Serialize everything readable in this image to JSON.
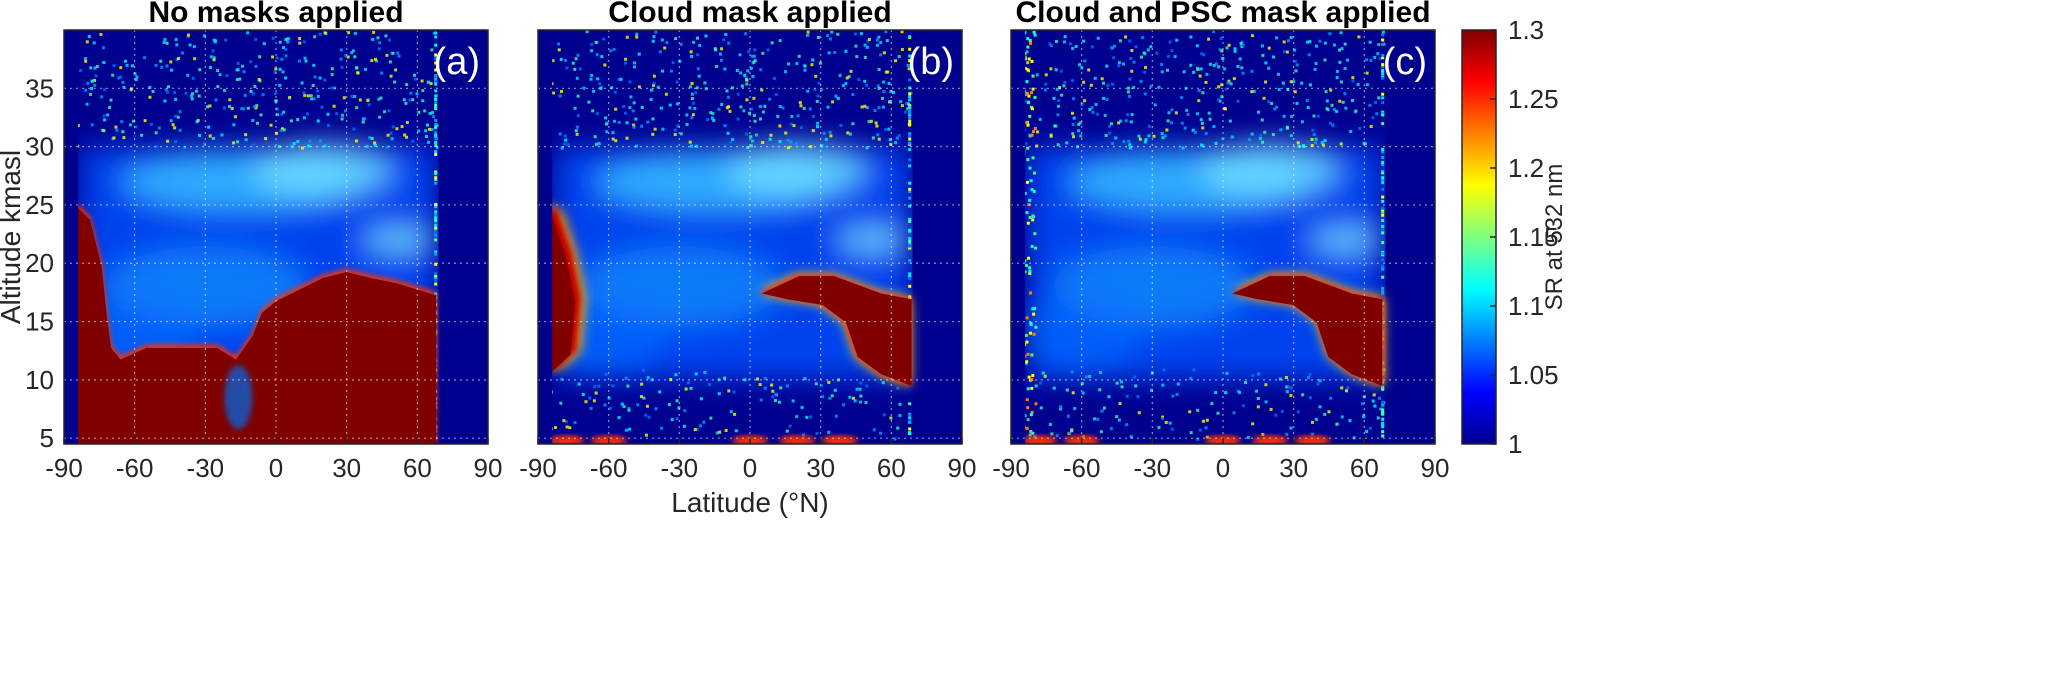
{
  "chart_data": [
    {
      "type": "heatmap",
      "panel_label": "(a)",
      "title": "No masks applied",
      "xlabel": "",
      "ylabel": "Altitude kmasl",
      "xlim": [
        -90,
        90
      ],
      "ylim": [
        4.5,
        40
      ],
      "xticks": [
        -90,
        -60,
        -30,
        0,
        30,
        60,
        90
      ],
      "yticks": [
        5,
        10,
        15,
        20,
        25,
        30,
        35
      ],
      "grid": true,
      "mask": "none"
    },
    {
      "type": "heatmap",
      "panel_label": "(b)",
      "title": "Cloud mask applied",
      "xlabel": "Latitude (°N)",
      "ylabel": "",
      "xlim": [
        -90,
        90
      ],
      "ylim": [
        4.5,
        40
      ],
      "xticks": [
        -90,
        -60,
        -30,
        0,
        30,
        60,
        90
      ],
      "yticks": [],
      "grid": true,
      "mask": "cloud"
    },
    {
      "type": "heatmap",
      "panel_label": "(c)",
      "title": "Cloud and PSC mask applied",
      "xlabel": "",
      "ylabel": "",
      "xlim": [
        -90,
        90
      ],
      "ylim": [
        4.5,
        40
      ],
      "xticks": [
        -90,
        -60,
        -30,
        0,
        30,
        60,
        90
      ],
      "yticks": [],
      "grid": true,
      "mask": "cloud_psc"
    }
  ],
  "colorbar": {
    "label": "SR at 532 nm",
    "min": 1,
    "max": 1.3,
    "ticks": [
      "1",
      "1.05",
      "1.1",
      "1.15",
      "1.2",
      "1.25",
      "1.3"
    ],
    "colormap": "jet"
  },
  "labels": {
    "shared_xlabel": "Latitude (°N)",
    "shared_ylabel": "Altitude kmasl"
  },
  "colors": {
    "background": "#00008f",
    "saturated": "#800000"
  }
}
